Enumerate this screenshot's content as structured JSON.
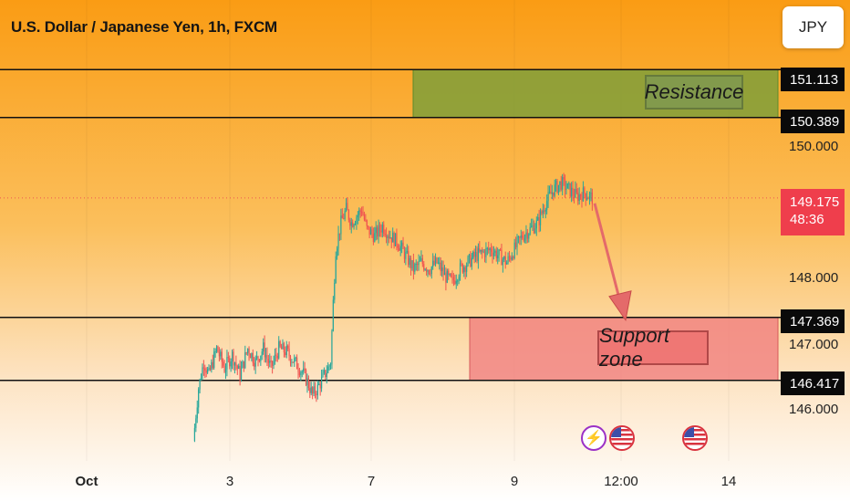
{
  "header": {
    "title": "U.S. Dollar / Japanese Yen, 1h, FXCM",
    "currency_button": "JPY"
  },
  "annotations": {
    "resistance_label": "Resistance",
    "support_label": "Support zone"
  },
  "price_tags": {
    "resistance_top": "151.113",
    "resistance_bottom": "150.389",
    "current_price": "149.175",
    "countdown": "48:36",
    "support_top": "147.369",
    "support_bottom": "146.417"
  },
  "y_axis": [
    "150.000",
    "148.000",
    "147.000",
    "146.000"
  ],
  "x_axis": [
    "Oct",
    "3",
    "7",
    "9",
    "12:00",
    "14"
  ],
  "colors": {
    "up": "#26a69a",
    "down": "#ef5350",
    "resistance_zone": "#7f9f3a",
    "support_zone": "#f08080",
    "arrow": "#e46a6a",
    "current_line": "#ef5350"
  },
  "icons": [
    "lightning-icon",
    "us-flag-icon",
    "us-flag-icon"
  ],
  "chart_data": {
    "type": "candlestick",
    "symbol": "U.S. Dollar / Japanese Yen",
    "interval": "1h",
    "y_range": [
      145.5,
      151.6
    ],
    "levels": {
      "resistance_zone": [
        150.389,
        151.113
      ],
      "support_zone": [
        146.417,
        147.369
      ],
      "current_price": 149.175
    },
    "x_ticks": [
      "Oct",
      "3",
      "7",
      "9",
      "12:00",
      "14"
    ],
    "y_ticks": [
      150.0,
      148.0,
      147.0,
      146.0
    ],
    "close_path": [
      {
        "x": 0,
        "y": 145.5
      },
      {
        "x": 4,
        "y": 146.3
      },
      {
        "x": 8,
        "y": 146.7
      },
      {
        "x": 12,
        "y": 146.5
      },
      {
        "x": 18,
        "y": 146.9
      },
      {
        "x": 24,
        "y": 146.6
      },
      {
        "x": 30,
        "y": 146.8
      },
      {
        "x": 36,
        "y": 146.5
      },
      {
        "x": 42,
        "y": 146.9
      },
      {
        "x": 48,
        "y": 146.7
      },
      {
        "x": 54,
        "y": 146.9
      },
      {
        "x": 60,
        "y": 146.6
      },
      {
        "x": 66,
        "y": 146.9
      },
      {
        "x": 72,
        "y": 146.85
      },
      {
        "x": 78,
        "y": 146.7
      },
      {
        "x": 84,
        "y": 146.55
      },
      {
        "x": 88,
        "y": 146.4
      },
      {
        "x": 92,
        "y": 146.2
      },
      {
        "x": 96,
        "y": 146.3
      },
      {
        "x": 100,
        "y": 146.45
      },
      {
        "x": 104,
        "y": 146.6
      },
      {
        "x": 106,
        "y": 146.7
      },
      {
        "x": 108,
        "y": 147.6
      },
      {
        "x": 110,
        "y": 148.4
      },
      {
        "x": 114,
        "y": 148.8
      },
      {
        "x": 118,
        "y": 149.0
      },
      {
        "x": 122,
        "y": 148.8
      },
      {
        "x": 126,
        "y": 148.9
      },
      {
        "x": 130,
        "y": 149.0
      },
      {
        "x": 134,
        "y": 148.7
      },
      {
        "x": 140,
        "y": 148.6
      },
      {
        "x": 146,
        "y": 148.75
      },
      {
        "x": 152,
        "y": 148.6
      },
      {
        "x": 158,
        "y": 148.5
      },
      {
        "x": 164,
        "y": 148.3
      },
      {
        "x": 170,
        "y": 148.1
      },
      {
        "x": 176,
        "y": 148.2
      },
      {
        "x": 182,
        "y": 148.1
      },
      {
        "x": 188,
        "y": 148.2
      },
      {
        "x": 194,
        "y": 148.0
      },
      {
        "x": 200,
        "y": 147.9
      },
      {
        "x": 206,
        "y": 148.1
      },
      {
        "x": 212,
        "y": 148.2
      },
      {
        "x": 218,
        "y": 148.3
      },
      {
        "x": 224,
        "y": 148.35
      },
      {
        "x": 230,
        "y": 148.4
      },
      {
        "x": 236,
        "y": 148.3
      },
      {
        "x": 242,
        "y": 148.2
      },
      {
        "x": 248,
        "y": 148.4
      },
      {
        "x": 254,
        "y": 148.6
      },
      {
        "x": 260,
        "y": 148.7
      },
      {
        "x": 266,
        "y": 148.8
      },
      {
        "x": 272,
        "y": 149.1
      },
      {
        "x": 278,
        "y": 149.3
      },
      {
        "x": 284,
        "y": 149.4
      },
      {
        "x": 290,
        "y": 149.3
      },
      {
        "x": 296,
        "y": 149.2
      },
      {
        "x": 302,
        "y": 149.25
      },
      {
        "x": 308,
        "y": 149.175
      }
    ],
    "projection": {
      "from": 149.175,
      "to": 147.3
    }
  }
}
